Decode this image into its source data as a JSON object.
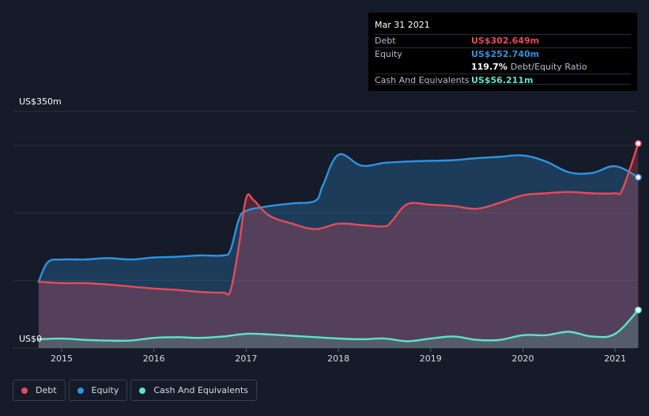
{
  "tooltip": {
    "date": "Mar 31 2021",
    "debt_label": "Debt",
    "debt_value": "US$302.649m",
    "equity_label": "Equity",
    "equity_value": "US$252.740m",
    "ratio_value": "119.7%",
    "ratio_label": "Debt/Equity Ratio",
    "cash_label": "Cash And Equivalents",
    "cash_value": "US$56.211m"
  },
  "legend": {
    "debt": "Debt",
    "equity": "Equity",
    "cash": "Cash And Equivalents"
  },
  "colors": {
    "background": "#151b28",
    "debt": "#e64b5b",
    "equity": "#2f93e0",
    "cash": "#5ee3c8",
    "grid": "#2b303b"
  },
  "chart_data": {
    "type": "area",
    "title": "",
    "xlabel": "",
    "ylabel": "",
    "y_axis_labels": [
      "US$350m",
      "US$0"
    ],
    "ylim": [
      0,
      350
    ],
    "xlim": [
      2014.5,
      2021.25
    ],
    "x_ticks": [
      2015,
      2016,
      2017,
      2018,
      2019,
      2020,
      2021
    ],
    "x_tick_labels": [
      "2015",
      "2016",
      "2017",
      "2018",
      "2019",
      "2020",
      "2021"
    ],
    "series": [
      {
        "name": "Debt",
        "x": [
          2014.75,
          2015.0,
          2015.25,
          2015.5,
          2015.75,
          2016.0,
          2016.25,
          2016.5,
          2016.75,
          2016.83,
          2016.92,
          2017.0,
          2017.08,
          2017.25,
          2017.5,
          2017.75,
          2018.0,
          2018.25,
          2018.5,
          2018.58,
          2018.75,
          2019.0,
          2019.25,
          2019.5,
          2019.75,
          2020.0,
          2020.25,
          2020.5,
          2020.75,
          2021.0,
          2021.08,
          2021.25
        ],
        "values": [
          98,
          96,
          96,
          94,
          91,
          88,
          86,
          83,
          82,
          85,
          150,
          222,
          219,
          196,
          184,
          176,
          184,
          182,
          180,
          188,
          213,
          212,
          210,
          206,
          215,
          226,
          229,
          231,
          229,
          229,
          235,
          302.649
        ]
      },
      {
        "name": "Equity",
        "x": [
          2014.75,
          2014.85,
          2015.0,
          2015.25,
          2015.5,
          2015.75,
          2016.0,
          2016.25,
          2016.5,
          2016.75,
          2016.83,
          2016.92,
          2017.0,
          2017.25,
          2017.5,
          2017.75,
          2017.83,
          2018.0,
          2018.25,
          2018.5,
          2018.75,
          2019.0,
          2019.25,
          2019.5,
          2019.75,
          2020.0,
          2020.25,
          2020.5,
          2020.75,
          2021.0,
          2021.25
        ],
        "values": [
          98,
          127,
          131,
          131,
          133,
          131,
          134,
          135,
          137,
          137,
          145,
          190,
          203,
          210,
          214,
          218,
          240,
          286,
          270,
          274,
          276,
          277,
          278,
          281,
          283,
          285,
          276,
          260,
          259,
          269,
          252.74
        ]
      },
      {
        "name": "Cash And Equivalents",
        "x": [
          2014.75,
          2015.0,
          2015.25,
          2015.5,
          2015.75,
          2016.0,
          2016.25,
          2016.5,
          2016.75,
          2017.0,
          2017.25,
          2017.5,
          2017.75,
          2018.0,
          2018.25,
          2018.5,
          2018.75,
          2019.0,
          2019.25,
          2019.5,
          2019.75,
          2020.0,
          2020.25,
          2020.5,
          2020.75,
          2021.0,
          2021.25
        ],
        "values": [
          13,
          14,
          12,
          11,
          11,
          15,
          16,
          15,
          17,
          21,
          20,
          18,
          16,
          14,
          13,
          14,
          10,
          14,
          17,
          12,
          12,
          19,
          19,
          24,
          17,
          21,
          56.211
        ]
      }
    ]
  }
}
